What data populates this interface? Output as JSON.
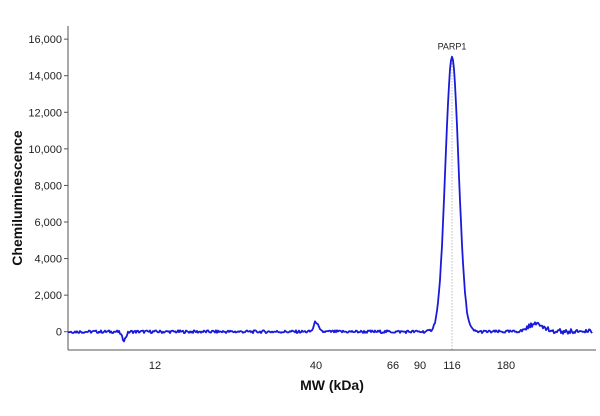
{
  "chart_data": {
    "type": "line",
    "xlabel": "MW (kDa)",
    "ylabel": "Chemiluminescence",
    "ylim": [
      -1000,
      16500
    ],
    "yticks": [
      0,
      2000,
      4000,
      6000,
      8000,
      10000,
      12000,
      14000,
      16000
    ],
    "ytick_labels": [
      "0",
      "2,000",
      "4,000",
      "6,000",
      "8,000",
      "10,000",
      "12,000",
      "14,000",
      "16,000"
    ],
    "xticks": [
      12,
      40,
      66,
      90,
      116,
      180
    ],
    "xtick_labels": [
      "12",
      "40",
      "66",
      "90",
      "116",
      "180"
    ],
    "grid": false,
    "line_color": "#1a1adb",
    "annotation": {
      "text": "PARP1",
      "x": 116,
      "y": 15000
    },
    "peaks": [
      {
        "x": 9.5,
        "height": -450,
        "width": 0.6
      },
      {
        "x": 40,
        "height": 550,
        "width": 0.6
      },
      {
        "x": 116,
        "height": 15000,
        "width": 2.2
      },
      {
        "x": 200,
        "height": 450,
        "width": 2.5
      }
    ]
  }
}
